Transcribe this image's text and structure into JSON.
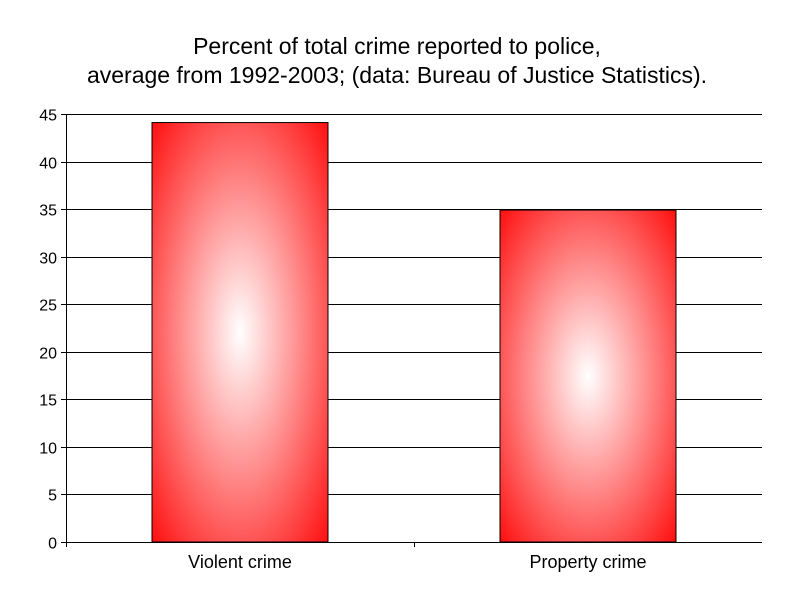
{
  "chart_data": {
    "type": "bar",
    "title_lines": [
      "Percent of total crime reported to police,",
      "average from 1992-2003; (data: Bureau of Justice Statistics)."
    ],
    "categories": [
      "Violent crime",
      "Property crime"
    ],
    "values": [
      44.1,
      34.9
    ],
    "ylim": [
      0,
      45
    ],
    "yticks": [
      0,
      5,
      10,
      15,
      20,
      25,
      30,
      35,
      40,
      45
    ],
    "grid": true,
    "legend": "none",
    "colors": {
      "bar_edge": "#ff0000",
      "bar_center": "#ffffff",
      "grid": "#000000",
      "axis": "#000000"
    }
  }
}
